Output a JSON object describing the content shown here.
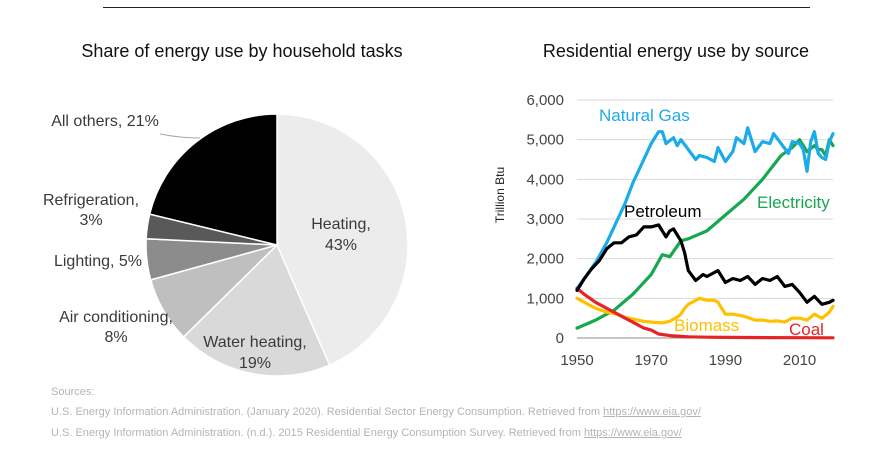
{
  "chart_data": [
    {
      "type": "pie",
      "title": "Share of energy use by household tasks",
      "slices": [
        {
          "label": "Heating, 43%",
          "value": 43,
          "color": "#ececec"
        },
        {
          "label": "Water heating, 19%",
          "value": 19,
          "color": "#d9d9d9"
        },
        {
          "label": "Air conditioning, 8%",
          "value": 8,
          "color": "#bfbfbf"
        },
        {
          "label": "Lighting, 5%",
          "value": 5,
          "color": "#8c8c8c"
        },
        {
          "label": "Refrigeration, 3%",
          "value": 3,
          "color": "#595959"
        },
        {
          "label": "All others, 21%",
          "value": 21,
          "color": "#000000"
        }
      ]
    },
    {
      "type": "line",
      "title": "Residential energy use by source",
      "ylabel": "Trillion Btu",
      "xlim": [
        1950,
        2019
      ],
      "ylim": [
        0,
        6000
      ],
      "x_ticks": [
        1950,
        1970,
        1990,
        2010
      ],
      "x_tick_labels": [
        "1950",
        "1970",
        "1990",
        "2010"
      ],
      "y_ticks": [
        0,
        1000,
        2000,
        3000,
        4000,
        5000,
        6000
      ],
      "y_tick_labels": [
        "0",
        "1,000",
        "2,000",
        "3,000",
        "4,000",
        "5,000",
        "6,000"
      ],
      "series": [
        {
          "name": "Natural Gas",
          "color": "#1aabe8",
          "x": [
            1950,
            1952,
            1955,
            1958,
            1960,
            1963,
            1965,
            1968,
            1970,
            1972,
            1973,
            1974,
            1976,
            1977,
            1978,
            1980,
            1982,
            1983,
            1985,
            1987,
            1988,
            1990,
            1992,
            1993,
            1995,
            1996,
            1998,
            2000,
            2002,
            2003,
            2005,
            2007,
            2008,
            2010,
            2011,
            2012,
            2013,
            2014,
            2015,
            2016,
            2017,
            2018,
            2019
          ],
          "y": [
            1250,
            1500,
            1900,
            2400,
            2800,
            3400,
            3900,
            4500,
            4900,
            5200,
            5200,
            4900,
            5050,
            4850,
            5000,
            4750,
            4500,
            4600,
            4550,
            4450,
            4800,
            4450,
            4700,
            5050,
            4900,
            5300,
            4700,
            4950,
            4900,
            5150,
            4900,
            4650,
            4950,
            4900,
            4750,
            4200,
            4950,
            5200,
            4650,
            4550,
            4500,
            4950,
            5150
          ]
        },
        {
          "name": "Electricity",
          "color": "#17a84f",
          "x": [
            1950,
            1955,
            1960,
            1965,
            1970,
            1973,
            1975,
            1978,
            1980,
            1985,
            1990,
            1995,
            2000,
            2005,
            2008,
            2010,
            2012,
            2014,
            2015,
            2016,
            2017,
            2018,
            2019
          ],
          "y": [
            250,
            450,
            700,
            1100,
            1600,
            2100,
            2050,
            2450,
            2500,
            2700,
            3100,
            3500,
            4000,
            4600,
            4800,
            5000,
            4700,
            4850,
            4750,
            4750,
            4600,
            5000,
            4850
          ]
        },
        {
          "name": "Petroleum",
          "color": "#000000",
          "x": [
            1950,
            1952,
            1954,
            1956,
            1958,
            1960,
            1962,
            1964,
            1966,
            1968,
            1970,
            1972,
            1973,
            1974,
            1975,
            1976,
            1977,
            1978,
            1979,
            1980,
            1982,
            1984,
            1985,
            1986,
            1988,
            1990,
            1992,
            1994,
            1996,
            1998,
            2000,
            2002,
            2004,
            2006,
            2008,
            2010,
            2012,
            2014,
            2016,
            2018,
            2019
          ],
          "y": [
            1200,
            1500,
            1750,
            1950,
            2250,
            2400,
            2400,
            2550,
            2600,
            2800,
            2800,
            2850,
            2700,
            2550,
            2700,
            2750,
            2600,
            2450,
            2150,
            1700,
            1450,
            1600,
            1550,
            1600,
            1700,
            1400,
            1500,
            1450,
            1550,
            1350,
            1500,
            1450,
            1550,
            1300,
            1350,
            1150,
            900,
            1050,
            850,
            900,
            950
          ]
        },
        {
          "name": "Biomass",
          "color": "#ffc000",
          "x": [
            1950,
            1952,
            1955,
            1958,
            1960,
            1963,
            1965,
            1968,
            1970,
            1973,
            1975,
            1977,
            1978,
            1979,
            1980,
            1982,
            1983,
            1985,
            1987,
            1988,
            1990,
            1992,
            1995,
            1998,
            2000,
            2002,
            2004,
            2006,
            2008,
            2010,
            2012,
            2014,
            2016,
            2018,
            2019
          ],
          "y": [
            1000,
            900,
            750,
            650,
            620,
            520,
            480,
            420,
            400,
            380,
            420,
            530,
            600,
            750,
            850,
            950,
            1000,
            950,
            950,
            900,
            600,
            600,
            550,
            450,
            450,
            420,
            430,
            400,
            500,
            500,
            450,
            600,
            500,
            650,
            800
          ]
        },
        {
          "name": "Coal",
          "color": "#e32526",
          "x": [
            1950,
            1952,
            1955,
            1958,
            1960,
            1963,
            1965,
            1968,
            1970,
            1972,
            1975,
            1978,
            1980,
            1985,
            1990,
            2000,
            2010,
            2019
          ],
          "y": [
            1250,
            1100,
            900,
            750,
            650,
            500,
            400,
            250,
            200,
            100,
            60,
            40,
            30,
            20,
            15,
            10,
            8,
            5
          ]
        }
      ]
    }
  ],
  "sources": {
    "heading": "Sources:",
    "lines": [
      {
        "text": "U.S. Energy Information Administration. (January 2020). Residential Sector Energy Consumption. Retrieved from ",
        "link": "https://www.eia.gov/"
      },
      {
        "text": "U.S. Energy Information Administration. (n.d.). 2015 Residential Energy Consumption Survey. Retrieved from ",
        "link": "https://www.eia.gov/"
      }
    ]
  }
}
